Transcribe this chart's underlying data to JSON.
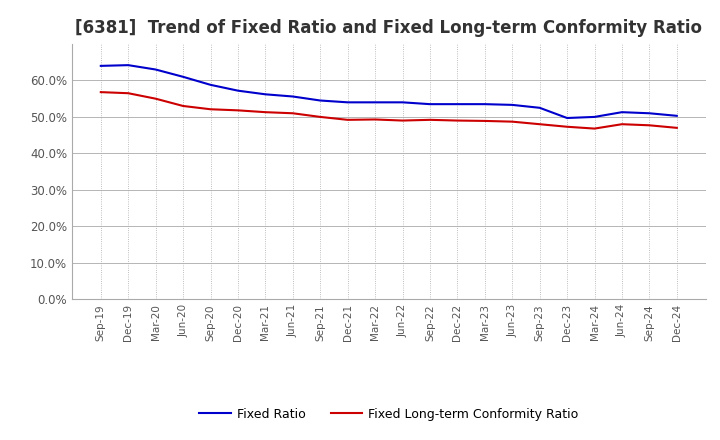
{
  "title": "[6381]  Trend of Fixed Ratio and Fixed Long-term Conformity Ratio",
  "title_fontsize": 12,
  "title_color": "#333333",
  "background_color": "#ffffff",
  "grid_color_h": "#aaaaaa",
  "grid_color_v": "#aaaaaa",
  "xlabels": [
    "Sep-19",
    "Dec-19",
    "Mar-20",
    "Jun-20",
    "Sep-20",
    "Dec-20",
    "Mar-21",
    "Jun-21",
    "Sep-21",
    "Dec-21",
    "Mar-22",
    "Jun-22",
    "Sep-22",
    "Dec-22",
    "Mar-23",
    "Jun-23",
    "Sep-23",
    "Dec-23",
    "Mar-24",
    "Jun-24",
    "Sep-24",
    "Dec-24"
  ],
  "fixed_ratio": [
    0.64,
    0.642,
    0.63,
    0.61,
    0.588,
    0.572,
    0.562,
    0.556,
    0.545,
    0.54,
    0.54,
    0.54,
    0.535,
    0.535,
    0.535,
    0.533,
    0.525,
    0.497,
    0.5,
    0.513,
    0.51,
    0.503
  ],
  "fixed_lt_ratio": [
    0.568,
    0.565,
    0.55,
    0.53,
    0.521,
    0.518,
    0.513,
    0.51,
    0.5,
    0.492,
    0.493,
    0.49,
    0.492,
    0.49,
    0.489,
    0.487,
    0.48,
    0.473,
    0.468,
    0.48,
    0.477,
    0.47
  ],
  "ylim": [
    0.0,
    0.7
  ],
  "yticks": [
    0.0,
    0.1,
    0.2,
    0.3,
    0.4,
    0.5,
    0.6
  ],
  "fixed_ratio_color": "#0000cc",
  "fixed_lt_ratio_color": "#cc0000",
  "line_width": 1.5
}
